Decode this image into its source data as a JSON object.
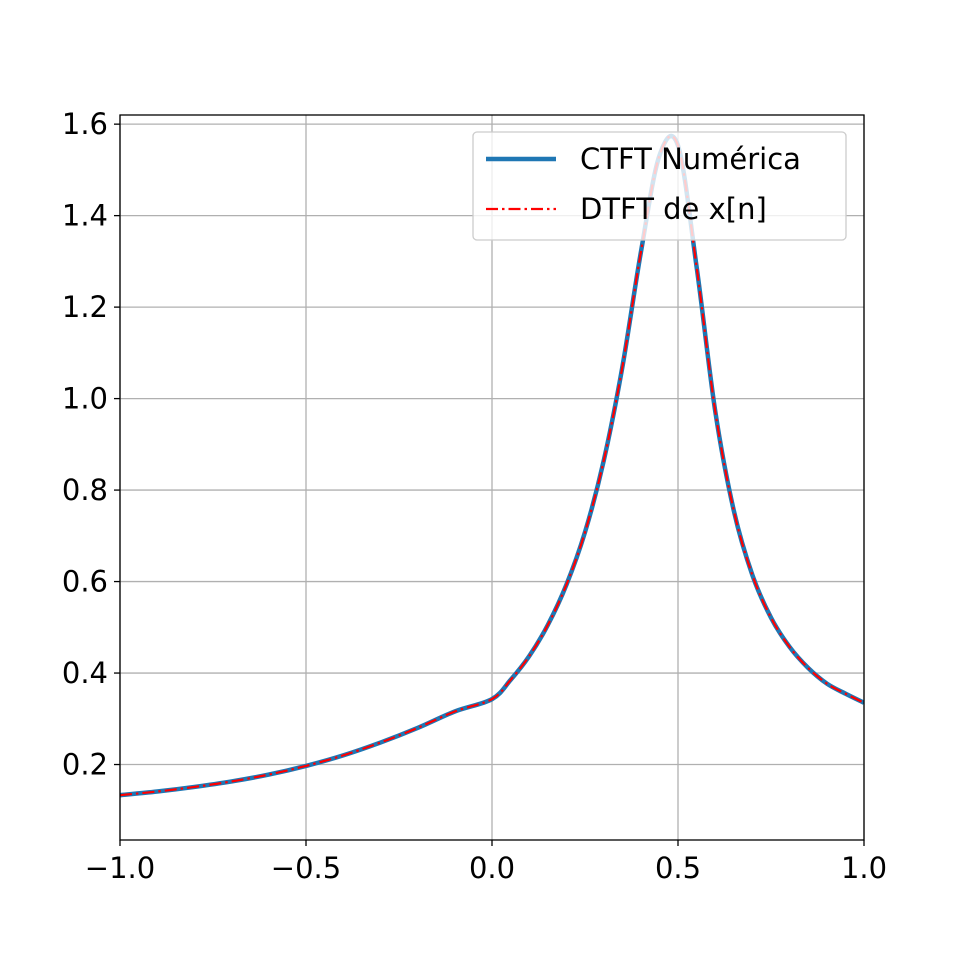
{
  "chart_data": {
    "type": "line",
    "title": "",
    "xlabel": "",
    "ylabel": "",
    "xlim": [
      -1.0,
      1.0
    ],
    "ylim": [
      0.035,
      1.62
    ],
    "grid": true,
    "legend_position": "top-right",
    "x_ticks": [
      {
        "value": -1.0,
        "label": "−1.0"
      },
      {
        "value": -0.5,
        "label": "−0.5"
      },
      {
        "value": 0.0,
        "label": "0.0"
      },
      {
        "value": 0.5,
        "label": "0.5"
      },
      {
        "value": 1.0,
        "label": "1.0"
      }
    ],
    "y_ticks": [
      {
        "value": 0.2,
        "label": "0.2"
      },
      {
        "value": 0.4,
        "label": "0.4"
      },
      {
        "value": 0.6,
        "label": "0.6"
      },
      {
        "value": 0.8,
        "label": "0.8"
      },
      {
        "value": 1.0,
        "label": "1.0"
      },
      {
        "value": 1.2,
        "label": "1.2"
      },
      {
        "value": 1.4,
        "label": "1.4"
      },
      {
        "value": 1.6,
        "label": "1.6"
      }
    ],
    "x": [
      -1.0,
      -0.9,
      -0.8,
      -0.7,
      -0.6,
      -0.5,
      -0.4,
      -0.3,
      -0.2,
      -0.1,
      0.0,
      0.05,
      0.1,
      0.15,
      0.2,
      0.25,
      0.3,
      0.35,
      0.4,
      0.45,
      0.5,
      0.55,
      0.6,
      0.65,
      0.7,
      0.75,
      0.8,
      0.85,
      0.9,
      0.95,
      1.0
    ],
    "series": [
      {
        "name": "CTFT Numérica",
        "color": "#1f77b4",
        "style": "solid",
        "values": [
          0.133,
          0.141,
          0.151,
          0.163,
          0.178,
          0.197,
          0.22,
          0.248,
          0.28,
          0.316,
          0.343,
          0.385,
          0.437,
          0.505,
          0.593,
          0.708,
          0.863,
          1.067,
          1.319,
          1.531,
          1.553,
          1.288,
          0.973,
          0.755,
          0.614,
          0.521,
          0.457,
          0.411,
          0.377,
          0.355,
          0.335
        ]
      },
      {
        "name": "DTFT de x[n]",
        "color": "#ff0000",
        "style": "dashdot",
        "values": [
          0.133,
          0.141,
          0.151,
          0.163,
          0.178,
          0.197,
          0.22,
          0.248,
          0.28,
          0.316,
          0.343,
          0.385,
          0.437,
          0.505,
          0.593,
          0.708,
          0.863,
          1.067,
          1.319,
          1.531,
          1.553,
          1.288,
          0.973,
          0.755,
          0.614,
          0.521,
          0.457,
          0.411,
          0.377,
          0.355,
          0.335
        ]
      }
    ]
  }
}
